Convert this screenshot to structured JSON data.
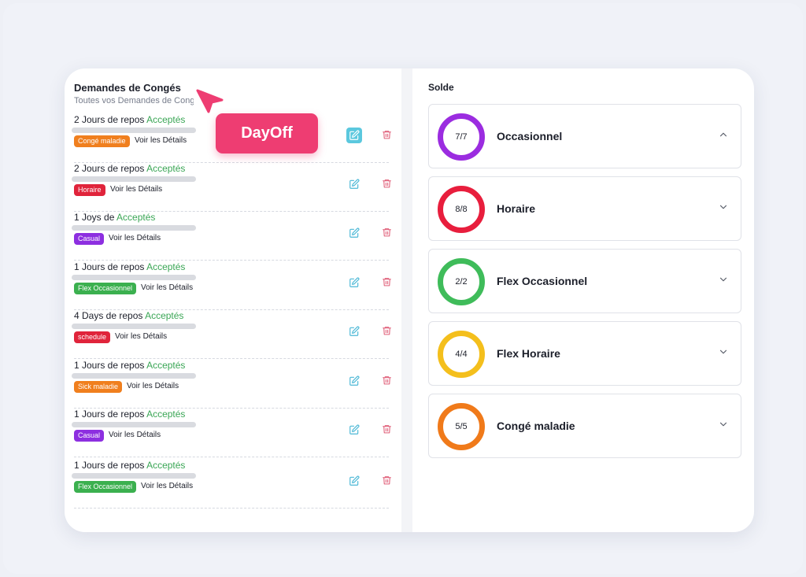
{
  "left_panel": {
    "title": "Demandes de Congés",
    "subtitle": "Toutes vos Demandes de Congés"
  },
  "badge": "DayOff",
  "requests": [
    {
      "prefix": "2 Jours de repos",
      "status": "Acceptés",
      "tag": "Congé maladie",
      "tag_color": "#f07f1e",
      "details": "Voir les Détails",
      "edit_active": true
    },
    {
      "prefix": "2 Jours de repos",
      "status": "Acceptés",
      "tag": "Horaire",
      "tag_color": "#e0243b",
      "details": "Voir les Détails",
      "edit_active": false
    },
    {
      "prefix": "1 Joys de",
      "status": "Acceptés",
      "tag": "Casual",
      "tag_color": "#8d2fe0",
      "details": "Voir les Détails",
      "edit_active": false
    },
    {
      "prefix": "1 Jours de repos",
      "status": "Acceptés",
      "tag": "Flex Occasionnel",
      "tag_color": "#3bb04f",
      "details": "Voir les Détails",
      "edit_active": false
    },
    {
      "prefix": "4 Days de repos",
      "status": "Acceptés",
      "tag": "schedule",
      "tag_color": "#e0243b",
      "details": "Voir les Détails",
      "edit_active": false
    },
    {
      "prefix": "1 Jours de repos",
      "status": "Acceptés",
      "tag": "Sick maladie",
      "tag_color": "#f07f1e",
      "details": "Voir les Détails",
      "edit_active": false
    },
    {
      "prefix": "1 Jours de repos",
      "status": "Acceptés",
      "tag": "Casual",
      "tag_color": "#8d2fe0",
      "details": "Voir les Détails",
      "edit_active": false
    },
    {
      "prefix": "1 Jours de repos",
      "status": "Acceptés",
      "tag": "Flex Occasionnel",
      "tag_color": "#3bb04f",
      "details": "Voir les Détails",
      "edit_active": false
    }
  ],
  "right_panel": {
    "title": "Solde",
    "balances": [
      {
        "value": "7/7",
        "label": "Occasionnel",
        "color": "#9b2ce0",
        "expanded": true
      },
      {
        "value": "8/8",
        "label": "Horaire",
        "color": "#e81e3d",
        "expanded": false
      },
      {
        "value": "2/2",
        "label": "Flex Occasionnel",
        "color": "#3fbc5a",
        "expanded": false
      },
      {
        "value": "4/4",
        "label": "Flex Horaire",
        "color": "#f4bf1c",
        "expanded": false
      },
      {
        "value": "5/5",
        "label": "Congé maladie",
        "color": "#f07a1a",
        "expanded": false
      }
    ]
  },
  "icons": {
    "edit": "edit-icon",
    "delete": "trash-icon",
    "expand": "chevron-down-icon",
    "collapse": "chevron-up-icon",
    "cursor": "cursor-pointer-icon"
  },
  "colors": {
    "accepted": "#3aa655",
    "edit_icon": "#4cb8d6",
    "delete_icon": "#e0607a",
    "badge": "#ee3d72"
  }
}
